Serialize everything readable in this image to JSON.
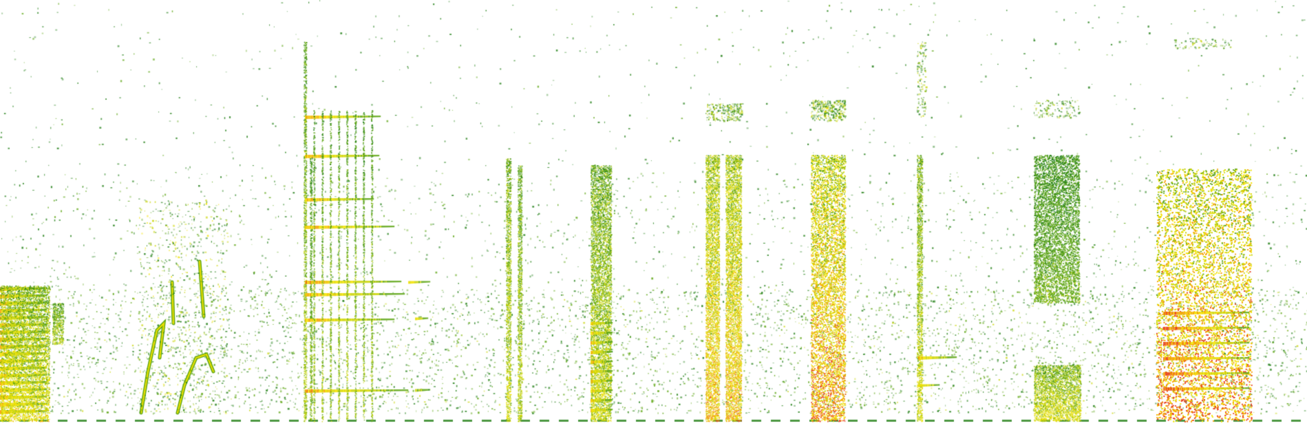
{
  "image": {
    "kind": "spectrogram",
    "background": "#ffffff",
    "palette": [
      "#1e7d12",
      "#5fa616",
      "#c9d50c",
      "#f2e200",
      "#f5a200",
      "#e8401c"
    ]
  },
  "spectrogram": {
    "frequency_axis": "vertical",
    "time_axis": "horizontal",
    "labels_visible": false,
    "segments": [
      {
        "name": "chirp-cluster-a",
        "shape": "harmonic-stack",
        "intensity": 0.75
      },
      {
        "name": "sweep-calls",
        "shape": "sweeps",
        "intensity": 0.55
      },
      {
        "name": "tonal-harmonics",
        "shape": "tonal-harmonics",
        "intensity": 0.8
      },
      {
        "name": "click-train-a",
        "shape": "narrow-pair",
        "intensity": 0.6
      },
      {
        "name": "pulse-stack",
        "shape": "pulse-stack",
        "intensity": 0.7
      },
      {
        "name": "twin-bursts",
        "shape": "twin-bands",
        "intensity": 0.85
      },
      {
        "name": "broadband-burst",
        "shape": "broadband",
        "intensity": 0.95
      },
      {
        "name": "thin-harmonic",
        "shape": "thin-harmonic",
        "intensity": 0.6
      },
      {
        "name": "mid-band-noise",
        "shape": "mid-band",
        "intensity": 0.65
      },
      {
        "name": "dense-chorus",
        "shape": "chorus",
        "intensity": 1.0
      }
    ]
  }
}
